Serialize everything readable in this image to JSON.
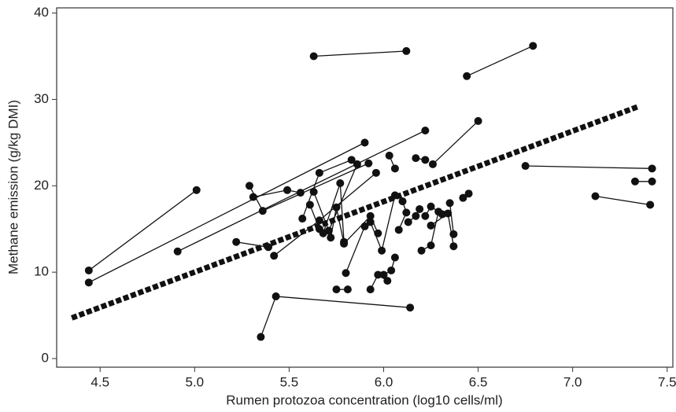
{
  "chart_data": {
    "type": "scatter",
    "x_label": "Rumen protozoa concentration (log10 cells/ml)",
    "y_label": "Methane emission (g/kg DMI)",
    "xlim": [
      4.27,
      7.53
    ],
    "ylim": [
      -1,
      40.6
    ],
    "xticks": [
      4.5,
      {
        "value": 5,
        "label": "5.0"
      },
      5.5,
      {
        "value": 6,
        "label": "6.0"
      },
      6.5,
      {
        "value": 7,
        "label": "7.0"
      },
      7.5
    ],
    "yticks": [
      0,
      10,
      20,
      30,
      40
    ],
    "grid": false,
    "color": "#111111",
    "series": [
      {
        "x": [
          5.63,
          6.12
        ],
        "y": [
          35.0,
          35.6
        ]
      },
      {
        "x": [
          6.44,
          6.79
        ],
        "y": [
          32.7,
          36.2
        ]
      },
      {
        "x": [
          4.44,
          5.01
        ],
        "y": [
          10.2,
          19.5
        ]
      },
      {
        "x": [
          4.44,
          5.9
        ],
        "y": [
          8.8,
          25.0
        ]
      },
      {
        "x": [
          4.91,
          6.22
        ],
        "y": [
          12.4,
          26.4
        ]
      },
      {
        "x": [
          5.35,
          5.43,
          6.14
        ],
        "y": [
          2.5,
          7.2,
          5.9
        ]
      },
      {
        "x": [
          6.75,
          7.42
        ],
        "y": [
          22.3,
          22.0
        ]
      },
      {
        "x": [
          7.12,
          7.41
        ],
        "y": [
          18.8,
          17.8
        ]
      },
      {
        "x": [
          7.33,
          7.42
        ],
        "y": [
          20.5,
          20.5
        ]
      },
      {
        "x": [
          5.29,
          5.36,
          5.92
        ],
        "y": [
          20.0,
          17.1,
          22.6
        ]
      },
      {
        "x": [
          5.31,
          5.49,
          5.56
        ],
        "y": [
          18.7,
          19.5,
          19.2
        ]
      },
      {
        "x": [
          5.22,
          5.39
        ],
        "y": [
          13.5,
          12.9
        ]
      },
      {
        "x": [
          5.42,
          5.66,
          5.96
        ],
        "y": [
          11.9,
          16.0,
          21.5
        ]
      },
      {
        "x": [
          5.57,
          5.66,
          5.83
        ],
        "y": [
          16.2,
          21.5,
          23.0
        ]
      },
      {
        "x": [
          5.63,
          5.71,
          5.86
        ],
        "y": [
          19.3,
          14.8,
          22.5
        ]
      },
      {
        "x": [
          5.61,
          5.66
        ],
        "y": [
          17.8,
          15.0
        ]
      },
      {
        "x": [
          5.68,
          5.77,
          5.79
        ],
        "y": [
          14.5,
          20.3,
          13.5
        ]
      },
      {
        "x": [
          5.72,
          5.75,
          5.79,
          5.93,
          5.97
        ],
        "y": [
          14.0,
          17.5,
          13.3,
          16.5,
          14.5
        ]
      },
      {
        "x": [
          5.8,
          5.9
        ],
        "y": [
          9.9,
          15.3
        ]
      },
      {
        "x": [
          5.75,
          5.81
        ],
        "y": [
          8.0,
          8.0
        ]
      },
      {
        "x": [
          5.93,
          5.97,
          6.02
        ],
        "y": [
          8.0,
          9.7,
          9.0
        ]
      },
      {
        "x": [
          5.93,
          5.99,
          6.06
        ],
        "y": [
          15.8,
          12.5,
          18.9
        ]
      },
      {
        "x": [
          6.03,
          6.06
        ],
        "y": [
          23.5,
          22.0
        ]
      },
      {
        "x": [
          6.0,
          6.04,
          6.06
        ],
        "y": [
          9.7,
          10.2,
          11.7
        ]
      },
      {
        "x": [
          6.08,
          6.12,
          6.1
        ],
        "y": [
          14.9,
          16.9,
          18.2
        ]
      },
      {
        "x": [
          6.13,
          6.17,
          6.19
        ],
        "y": [
          15.8,
          16.5,
          17.3
        ]
      },
      {
        "x": [
          6.17,
          6.22
        ],
        "y": [
          23.2,
          23.0
        ]
      },
      {
        "x": [
          6.2,
          6.25,
          6.29
        ],
        "y": [
          12.5,
          13.1,
          17.0
        ]
      },
      {
        "x": [
          6.22,
          6.25,
          6.31
        ],
        "y": [
          16.5,
          17.6,
          16.7
        ]
      },
      {
        "x": [
          6.35,
          6.37
        ],
        "y": [
          18.0,
          14.4
        ]
      },
      {
        "x": [
          6.26,
          6.5
        ],
        "y": [
          22.5,
          27.5
        ]
      },
      {
        "x": [
          6.42,
          6.45
        ],
        "y": [
          18.6,
          19.1
        ]
      },
      {
        "x": [
          6.25,
          6.34,
          6.37
        ],
        "y": [
          15.4,
          16.8,
          13.0
        ]
      }
    ],
    "trend_line": {
      "x": [
        4.35,
        7.35
      ],
      "y": [
        4.7,
        29.2
      ],
      "color": "#111111"
    }
  }
}
